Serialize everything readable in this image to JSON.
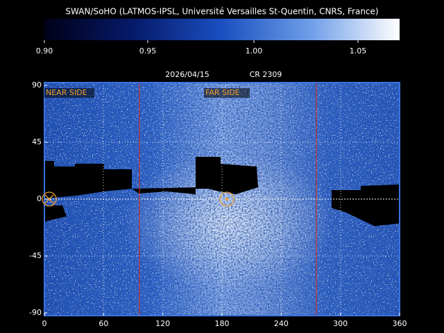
{
  "header": {
    "title": "SWAN/SoHO (LATMOS-IPSL, Université Versailles St-Quentin, CNRS, France)"
  },
  "colorbar": {
    "labels": [
      "0.90",
      "0.95",
      "1.00",
      "1.05"
    ]
  },
  "map": {
    "date": "2026/04/15",
    "rotation": "CR 2309",
    "near_side": "NEAR SIDE",
    "far_side": "FAR SIDE",
    "y_labels": [
      "90",
      "45",
      "0",
      "-45",
      "-90"
    ],
    "x_labels": [
      "0",
      "60",
      "120",
      "180",
      "240",
      "300",
      "360"
    ]
  }
}
